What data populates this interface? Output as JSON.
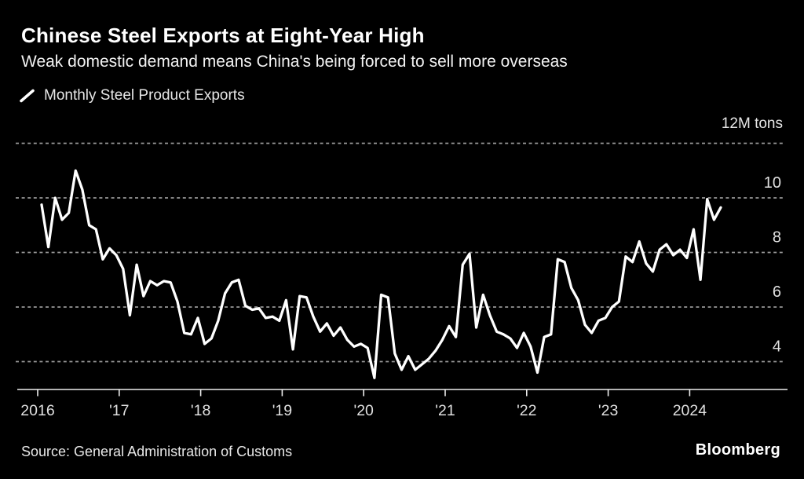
{
  "header": {
    "title": "Chinese Steel Exports at Eight-Year High",
    "subtitle": "Weak domestic demand means China's being forced to sell more overseas"
  },
  "legend": {
    "series_label": "Monthly Steel Product Exports"
  },
  "footer": {
    "source": "Source: General Administration of Customs",
    "brand": "Bloomberg"
  },
  "chart_data": {
    "type": "line",
    "title": "Chinese Steel Exports at Eight-Year High",
    "subtitle": "Weak domestic demand means China's being forced to sell more overseas",
    "unit": "million tons per month",
    "frequency": "monthly",
    "start": "2016-01",
    "end": "2024-05",
    "series": [
      {
        "name": "Monthly Steel Product Exports",
        "values": [
          9.75,
          8.2,
          10.0,
          9.2,
          9.45,
          11.0,
          10.3,
          9.0,
          8.85,
          7.75,
          8.15,
          7.9,
          7.4,
          5.7,
          7.55,
          6.4,
          6.95,
          6.8,
          6.95,
          6.9,
          6.2,
          5.05,
          5.0,
          5.6,
          4.65,
          4.85,
          5.5,
          6.5,
          6.9,
          7.0,
          6.05,
          5.9,
          5.95,
          5.6,
          5.65,
          5.5,
          6.25,
          4.45,
          6.4,
          6.35,
          5.65,
          5.1,
          5.4,
          4.95,
          5.25,
          4.8,
          4.55,
          4.65,
          4.5,
          3.4,
          6.45,
          6.35,
          4.3,
          3.7,
          4.2,
          3.7,
          3.9,
          4.1,
          4.4,
          4.8,
          5.3,
          4.9,
          7.55,
          7.95,
          5.25,
          6.45,
          5.7,
          5.1,
          5.0,
          4.85,
          4.5,
          5.05,
          4.55,
          3.6,
          4.9,
          5.0,
          7.75,
          7.65,
          6.7,
          6.25,
          5.35,
          5.05,
          5.5,
          5.6,
          6.0,
          6.2,
          7.85,
          7.65,
          8.4,
          7.6,
          7.3,
          8.1,
          8.3,
          7.9,
          8.1,
          7.8,
          8.85,
          7.0,
          9.95,
          9.2,
          9.65
        ]
      }
    ],
    "x_axis": {
      "tick_labels": [
        "2016",
        "'17",
        "'18",
        "'19",
        "'20",
        "'21",
        "'22",
        "'23",
        "2024"
      ],
      "tick_years": [
        2016,
        2017,
        2018,
        2019,
        2020,
        2021,
        2022,
        2023,
        2024
      ]
    },
    "y_axis": {
      "unit_label": "12M tons",
      "tick_labels": [
        "10",
        "8",
        "6",
        "4"
      ],
      "tick_values": [
        10,
        8,
        6,
        4
      ],
      "gridline_values": [
        12,
        10,
        8,
        6,
        4
      ],
      "range": [
        3,
        12
      ]
    },
    "grid": "dashed-horizontal",
    "legend_position": "top-left",
    "colors": {
      "background": "#000000",
      "line": "#ffffff",
      "gridline": "#969696",
      "axis": "#ededed",
      "tick_text": "#e0e0e0"
    }
  }
}
